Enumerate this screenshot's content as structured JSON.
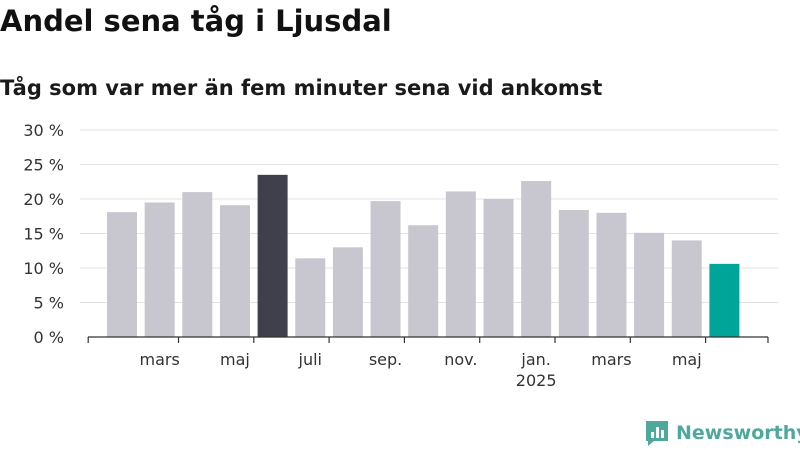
{
  "header": {
    "title": "Andel sena tåg i Ljusdal",
    "subtitle": "Tåg som var mer än fem minuter sena vid ankomst"
  },
  "brand": {
    "name": "Newsworthy",
    "color": "#4fa89c"
  },
  "colors": {
    "bar_default": "#c8c7d0",
    "bar_highlight_max": "#403f4c",
    "bar_highlight_latest": "#00a59a",
    "grid": "#e3e3e3",
    "axis": "#333333"
  },
  "chart_data": {
    "type": "bar",
    "title": "Andel sena tåg i Ljusdal",
    "subtitle": "Tåg som var mer än fem minuter sena vid ankomst",
    "xlabel": "",
    "ylabel": "",
    "ylim": [
      0,
      30
    ],
    "yticks": [
      0,
      5,
      10,
      15,
      20,
      25,
      30
    ],
    "ytick_labels": [
      "0 %",
      "5 %",
      "10 %",
      "15 %",
      "20 %",
      "25 %",
      "30 %"
    ],
    "grid": true,
    "categories": [
      "2024-02",
      "2024-03",
      "2024-04",
      "2024-05",
      "2024-06",
      "2024-07",
      "2024-08",
      "2024-09",
      "2024-10",
      "2024-11",
      "2024-12",
      "2025-01",
      "2025-02",
      "2025-03",
      "2025-04",
      "2025-05",
      "2025-06"
    ],
    "values": [
      18.1,
      19.5,
      21.0,
      19.1,
      23.5,
      11.4,
      13.0,
      19.7,
      16.2,
      21.1,
      20.0,
      22.6,
      18.4,
      18.0,
      15.1,
      14.0,
      10.6
    ],
    "highlight": {
      "max_index": 4,
      "latest_index": 16
    },
    "xtick_labels": [
      {
        "category": "2024-03",
        "label": "mars",
        "sublabel": ""
      },
      {
        "category": "2024-05",
        "label": "maj",
        "sublabel": ""
      },
      {
        "category": "2024-07",
        "label": "juli",
        "sublabel": ""
      },
      {
        "category": "2024-09",
        "label": "sep.",
        "sublabel": ""
      },
      {
        "category": "2024-11",
        "label": "nov.",
        "sublabel": ""
      },
      {
        "category": "2025-01",
        "label": "jan.",
        "sublabel": "2025"
      },
      {
        "category": "2025-03",
        "label": "mars",
        "sublabel": ""
      },
      {
        "category": "2025-05",
        "label": "maj",
        "sublabel": ""
      }
    ]
  }
}
